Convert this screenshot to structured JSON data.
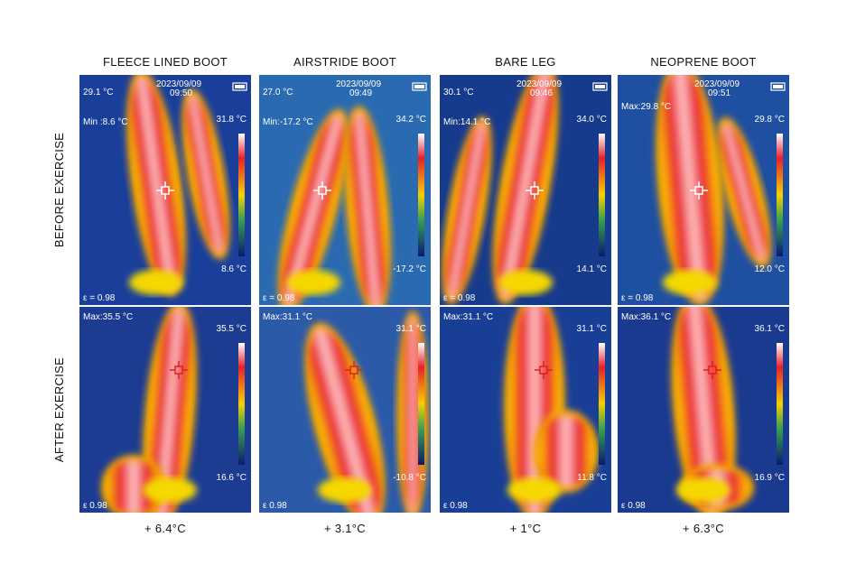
{
  "columns": [
    {
      "title": "FLEECE LINED BOOT",
      "change": "+ 6.4°C"
    },
    {
      "title": "AIRSTRIDE BOOT",
      "change": "+ 3.1°C"
    },
    {
      "title": "BARE LEG",
      "change": "+ 1°C"
    },
    {
      "title": "NEOPRENE BOOT",
      "change": "+ 6.3°C"
    }
  ],
  "rows": [
    {
      "label": "BEFORE EXERCISE",
      "panels": [
        {
          "reading": "29.1 °C",
          "date": "2023/09/09",
          "time": "09:50",
          "stat": "Min :8.6 °C",
          "scale_max": "31.8 °C",
          "scale_min": "8.6 °C",
          "emissivity": "ε = 0.98"
        },
        {
          "reading": "27.0 °C",
          "date": "2023/09/09",
          "time": "09:49",
          "stat": "Min:-17.2 °C",
          "scale_max": "34.2 °C",
          "scale_min": "-17.2 °C",
          "emissivity": "ε = 0.98"
        },
        {
          "reading": "30.1 °C",
          "date": "2023/09/09",
          "time": "09:46",
          "stat": "Min:14.1 °C",
          "scale_max": "34.0 °C",
          "scale_min": "14.1 °C",
          "emissivity": "ε = 0.98"
        },
        {
          "date": "2023/09/09",
          "time": "09:51",
          "stat": "Max:29.8 °C",
          "scale_max": "29.8 °C",
          "scale_min": "12.0 °C",
          "emissivity": "ε = 0.98"
        }
      ]
    },
    {
      "label": "AFTER EXERCISE",
      "panels": [
        {
          "stat": "Max:35.5 °C",
          "scale_max": "35.5 °C",
          "scale_min": "16.6 °C",
          "emissivity": "ε 0.98"
        },
        {
          "stat": "Max:31.1 °C",
          "scale_max": "31.1 °C",
          "scale_min": "-10.8 °C",
          "emissivity": "ε 0.98"
        },
        {
          "stat": "Max:31.1 °C",
          "scale_max": "31.1 °C",
          "scale_min": "11.8 °C",
          "emissivity": "ε 0.98"
        },
        {
          "stat": "Max:36.1 °C",
          "scale_max": "36.1 °C",
          "scale_min": "16.9 °C",
          "emissivity": "ε 0.98"
        }
      ]
    }
  ]
}
